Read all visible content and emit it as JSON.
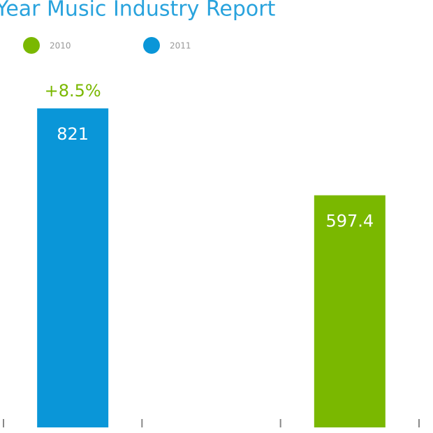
{
  "chart_data": {
    "type": "bar",
    "title": "Year Music Industry Report",
    "categories": [
      null,
      null,
      null
    ],
    "series": [
      {
        "name": "2010",
        "color": "#7ab800",
        "values": [
          null,
          null,
          597.4
        ]
      },
      {
        "name": "2011",
        "color": "#0a96d8",
        "values": [
          821,
          null,
          null
        ]
      }
    ],
    "annotations": [
      "+8.5%"
    ],
    "ylim": [
      0,
      1100
    ]
  }
}
